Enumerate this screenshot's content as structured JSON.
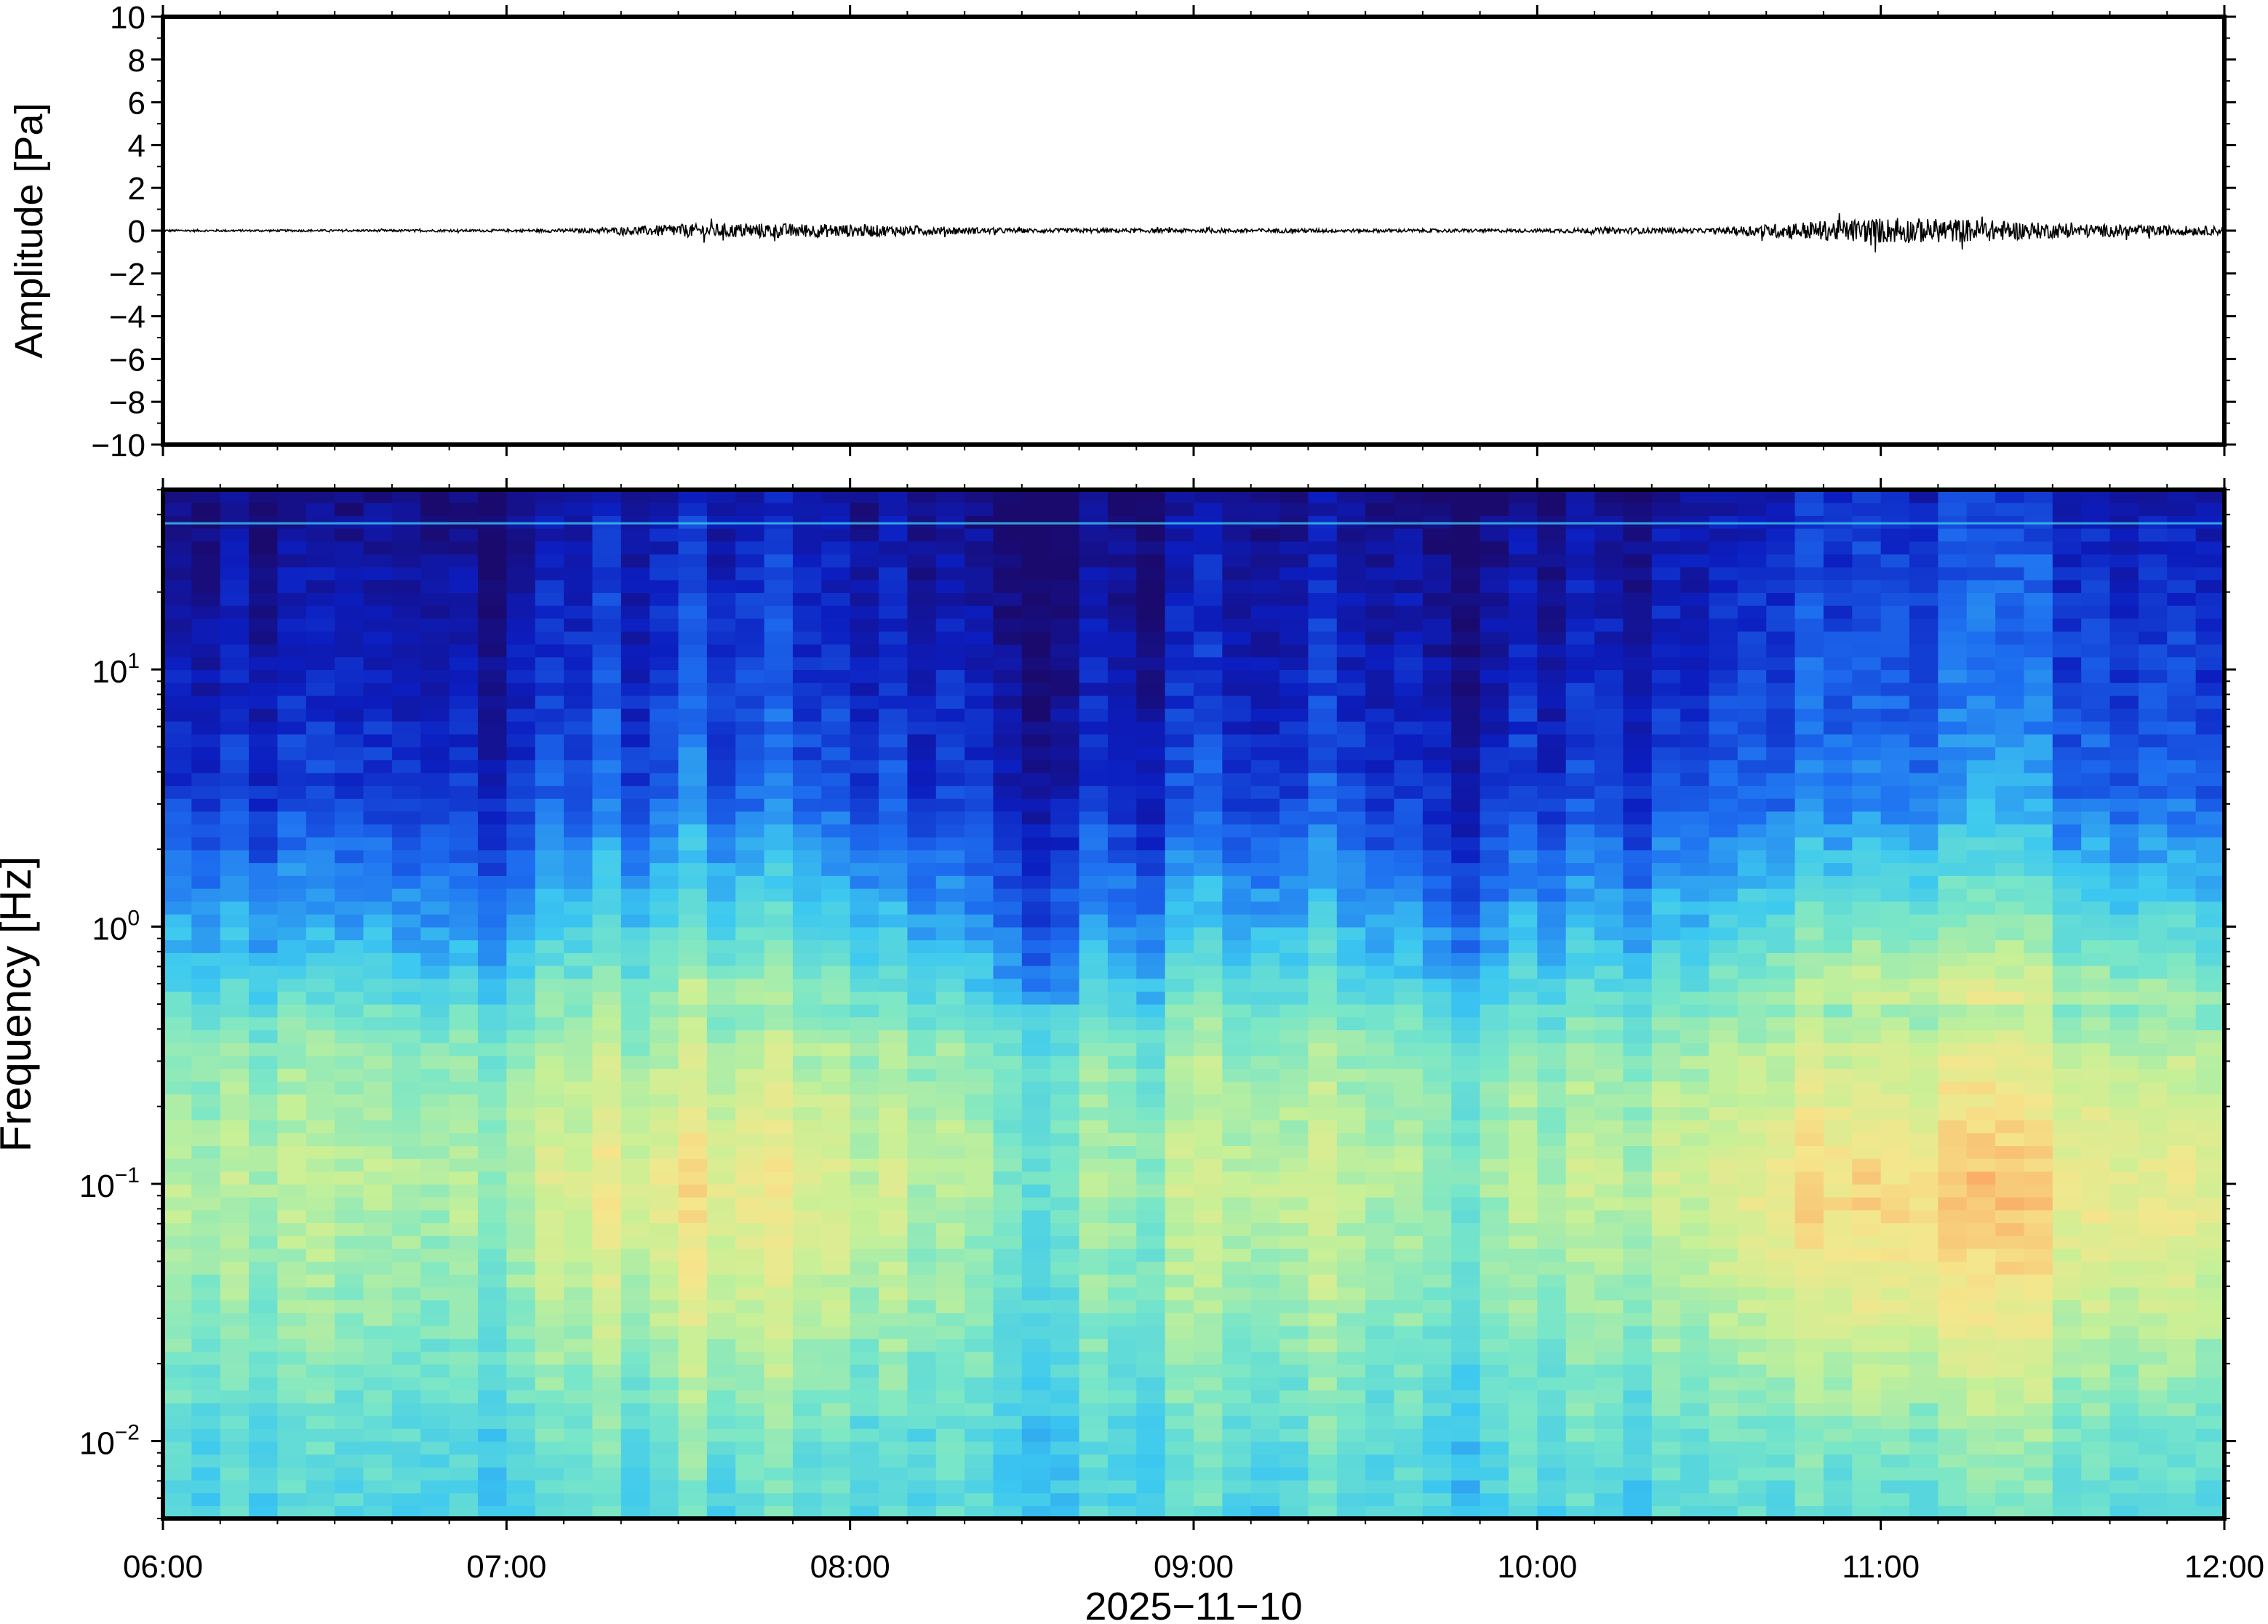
{
  "chart_data": [
    {
      "type": "line",
      "panel": "waveform",
      "ylabel": "Amplitude [Pa]",
      "ylim": [
        -10,
        10
      ],
      "y_ticks": [
        10,
        8,
        6,
        4,
        2,
        0,
        -2,
        -4,
        -6,
        -8,
        -10
      ],
      "y_tick_labels": [
        "10",
        "8",
        "6",
        "4",
        "2",
        "0",
        "−2",
        "−4",
        "−6",
        "−8",
        "−10"
      ],
      "xlim": [
        "06:00",
        "12:00"
      ],
      "series": [
        {
          "color": "#000000",
          "x": [
            "06:00",
            "06:30",
            "07:00",
            "07:15",
            "07:30",
            "07:45",
            "08:00",
            "08:15",
            "08:30",
            "08:45",
            "09:00",
            "09:15",
            "09:30",
            "09:45",
            "10:00",
            "10:15",
            "10:30",
            "10:45",
            "11:00",
            "11:15",
            "11:30",
            "11:45",
            "12:00"
          ],
          "envelope": [
            0.05,
            0.05,
            0.06,
            0.1,
            0.3,
            0.35,
            0.3,
            0.2,
            0.1,
            0.1,
            0.1,
            0.1,
            0.08,
            0.08,
            0.08,
            0.15,
            0.1,
            0.4,
            0.6,
            0.55,
            0.35,
            0.25,
            0.2
          ]
        }
      ],
      "grid": false
    },
    {
      "type": "heatmap",
      "panel": "spectrogram",
      "ylabel": "Frequency [Hz]",
      "xlabel": "2025−11−10",
      "y_scale": "log",
      "ylim": [
        0.005,
        50
      ],
      "y_tick_labels": [
        {
          "value": 10,
          "base": "10",
          "exp": "1"
        },
        {
          "value": 1,
          "base": "10",
          "exp": "0"
        },
        {
          "value": 0.1,
          "base": "10",
          "exp": "−1"
        },
        {
          "value": 0.01,
          "base": "10",
          "exp": "−2"
        }
      ],
      "x_ticks": [
        "06:00",
        "07:00",
        "08:00",
        "09:00",
        "10:00",
        "11:00",
        "12:00"
      ],
      "colormap": [
        "#1a0a6e",
        "#0c1ec0",
        "#1e6ef0",
        "#3cc8f0",
        "#78e6c8",
        "#c8f096",
        "#f5e68c",
        "#faaa64",
        "#f06e46"
      ],
      "spectral_bands_log10f": [
        -2.3,
        -2.0,
        -1.5,
        -1.0,
        -0.5,
        0.0,
        0.5,
        1.0,
        1.5,
        1.7
      ],
      "intensity_profile_quiet": [
        0.42,
        0.45,
        0.55,
        0.62,
        0.55,
        0.35,
        0.18,
        0.12,
        0.07,
        0.03
      ],
      "time_activity": [
        {
          "t": "06:00",
          "level": 0.35
        },
        {
          "t": "06:30",
          "level": 0.3
        },
        {
          "t": "07:00",
          "level": 0.35
        },
        {
          "t": "07:15",
          "level": 0.55
        },
        {
          "t": "07:30",
          "level": 0.65
        },
        {
          "t": "07:45",
          "level": 0.62
        },
        {
          "t": "08:00",
          "level": 0.5
        },
        {
          "t": "08:15",
          "level": 0.3
        },
        {
          "t": "08:30",
          "level": 0.1
        },
        {
          "t": "08:45",
          "level": 0.25
        },
        {
          "t": "09:00",
          "level": 0.35
        },
        {
          "t": "09:15",
          "level": 0.5
        },
        {
          "t": "09:30",
          "level": 0.3
        },
        {
          "t": "09:45",
          "level": 0.25
        },
        {
          "t": "10:00",
          "level": 0.3
        },
        {
          "t": "10:15",
          "level": 0.4
        },
        {
          "t": "10:30",
          "level": 0.4
        },
        {
          "t": "10:45",
          "level": 0.75
        },
        {
          "t": "11:00",
          "level": 0.82
        },
        {
          "t": "11:15",
          "level": 0.85
        },
        {
          "t": "11:30",
          "level": 0.7
        },
        {
          "t": "11:45",
          "level": 0.62
        },
        {
          "t": "12:00",
          "level": 0.6
        }
      ],
      "narrow_line_hz": 37,
      "grid": false
    }
  ]
}
